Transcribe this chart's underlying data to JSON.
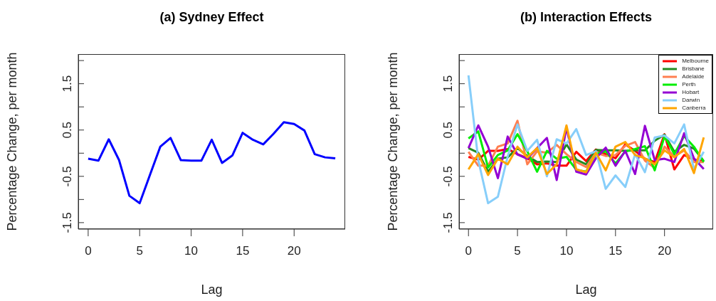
{
  "chart_data": [
    {
      "type": "line",
      "title": "(a) Sydney Effect",
      "xlabel": "Lag",
      "ylabel": "Percentage Change, per month",
      "x": [
        0,
        1,
        2,
        3,
        4,
        5,
        6,
        7,
        8,
        9,
        10,
        11,
        12,
        13,
        14,
        15,
        16,
        17,
        18,
        19,
        20,
        21,
        22,
        23,
        24
      ],
      "xlim": [
        -0.96,
        24.96
      ],
      "ylim": [
        -1.64,
        2.14
      ],
      "xticks": [
        0,
        5,
        10,
        15,
        20
      ],
      "yticks": [
        -1.5,
        {
          "value": -1,
          "label": null
        },
        -0.5,
        {
          "value": 0,
          "label": null
        },
        0.5,
        {
          "value": 1,
          "label": null
        },
        1.5,
        {
          "value": 2,
          "label": null
        }
      ],
      "legend": false,
      "series": [
        {
          "color": "#0000ff",
          "values": [
            -0.12,
            -0.16,
            0.3,
            -0.15,
            -0.92,
            -1.08,
            -0.47,
            0.14,
            0.33,
            -0.15,
            -0.16,
            -0.16,
            0.29,
            -0.21,
            -0.05,
            0.44,
            0.29,
            0.19,
            0.42,
            0.67,
            0.63,
            0.49,
            -0.02,
            -0.09,
            -0.11
          ]
        }
      ]
    },
    {
      "type": "line",
      "title": "(b) Interaction Effects",
      "xlabel": "Lag",
      "ylabel": "Percentage Change, per month",
      "x": [
        0,
        1,
        2,
        3,
        4,
        5,
        6,
        7,
        8,
        9,
        10,
        11,
        12,
        13,
        14,
        15,
        16,
        17,
        18,
        19,
        20,
        21,
        22,
        23,
        24
      ],
      "xlim": [
        -0.96,
        24.96
      ],
      "ylim": [
        -1.64,
        2.14
      ],
      "xticks": [
        0,
        5,
        10,
        15,
        20
      ],
      "yticks": [
        -1.5,
        {
          "value": -1,
          "label": null
        },
        -0.5,
        {
          "value": 0,
          "label": null
        },
        0.5,
        {
          "value": 1,
          "label": null
        },
        1.5,
        {
          "value": 2,
          "label": null
        }
      ],
      "legend": "top right",
      "series": [
        {
          "name": "Melbourne",
          "color": "#ff0000",
          "values": [
            -0.08,
            -0.14,
            0.05,
            0.05,
            0.09,
            -0.02,
            -0.11,
            -0.24,
            -0.22,
            -0.27,
            -0.27,
            0.03,
            -0.17,
            0.08,
            -0.02,
            -0.11,
            0.19,
            0.05,
            -0.12,
            -0.19,
            0.41,
            -0.35,
            -0.04,
            -0.14,
            -0.17
          ]
        },
        {
          "name": "Brisbane",
          "color": "#228b22",
          "values": [
            0.11,
            0.01,
            -0.4,
            -0.12,
            -0.09,
            0.11,
            -0.06,
            -0.19,
            -0.18,
            -0.19,
            0.19,
            -0.14,
            -0.24,
            0.07,
            0.06,
            0.06,
            0.05,
            0.06,
            0.06,
            0.27,
            0.4,
            0.03,
            0.18,
            0.1,
            -0.17
          ]
        },
        {
          "name": "Adelaide",
          "color": "#ff7f50",
          "values": [
            0.03,
            -0.27,
            -0.27,
            0.14,
            0.21,
            0.7,
            -0.24,
            0.04,
            0.01,
            0.18,
            -0.02,
            -0.19,
            -0.3,
            0.01,
            -0.06,
            -0.04,
            0.16,
            0.24,
            -0.16,
            -0.32,
            0.14,
            -0.07,
            0.06,
            -0.19,
            -0.19
          ]
        },
        {
          "name": "Perth",
          "color": "#00ee00",
          "values": [
            0.32,
            0.47,
            -0.31,
            -0.04,
            0.06,
            0.41,
            0.04,
            -0.4,
            0.05,
            -0.12,
            -0.08,
            -0.36,
            -0.4,
            -0.01,
            0.04,
            -0.22,
            0.04,
            0.09,
            0.15,
            -0.37,
            0.37,
            -0.02,
            0.37,
            0.14,
            -0.19
          ]
        },
        {
          "name": "Hobart",
          "color": "#9400d3",
          "values": [
            0.11,
            0.6,
            0.14,
            -0.54,
            0.36,
            -0.03,
            -0.12,
            0.11,
            0.33,
            -0.58,
            0.55,
            -0.4,
            -0.46,
            -0.11,
            0.12,
            -0.27,
            0.05,
            -0.45,
            0.59,
            -0.15,
            -0.12,
            -0.19,
            0.43,
            -0.11,
            -0.34
          ]
        },
        {
          "name": "Darwin",
          "color": "#87cefa",
          "values": [
            1.68,
            -0.15,
            -1.08,
            -0.94,
            -0.07,
            0.62,
            0.05,
            0.29,
            -0.5,
            0.3,
            0.21,
            0.52,
            -0.04,
            0.04,
            -0.77,
            -0.48,
            -0.73,
            -0.02,
            -0.41,
            0.34,
            0.38,
            0.21,
            0.62,
            -0.35,
            0.03
          ]
        },
        {
          "name": "Canberra",
          "color": "#ffa500",
          "values": [
            -0.35,
            -0.02,
            -0.47,
            -0.12,
            -0.24,
            0.14,
            -0.09,
            0.11,
            -0.45,
            -0.24,
            0.6,
            -0.35,
            -0.41,
            0.01,
            -0.37,
            0.14,
            0.24,
            -0.04,
            -0.11,
            -0.24,
            0.06,
            -0.09,
            0.09,
            -0.43,
            0.34
          ]
        }
      ]
    }
  ]
}
